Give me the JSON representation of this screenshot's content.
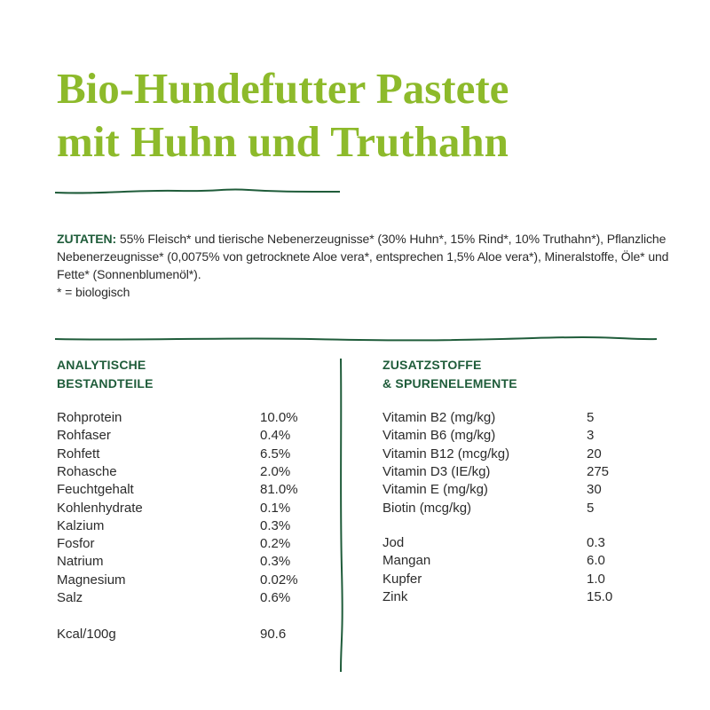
{
  "title": {
    "line1": "Bio-Hundefutter Pastete",
    "line2": "mit Huhn und Truthahn"
  },
  "ingredients": {
    "label": "ZUTATEN:",
    "text": " 55% Fleisch* und tierische Nebenerzeugnisse* (30% Huhn*, 15% Rind*, 10% Truthahn*), Pflanzliche Nebenerzeugnisse* (0,0075% von getrocknete Aloe vera*, entsprechen 1,5% Aloe vera*), Mineralstoffe, Öle* und Fette* (Sonnenblumenöl*).",
    "footnote": "* = biologisch"
  },
  "analytical": {
    "heading1": "ANALYTISCHE",
    "heading2": "BESTANDTEILE",
    "rows": [
      {
        "label": "Rohprotein",
        "value": "10.0%"
      },
      {
        "label": "Rohfaser",
        "value": "0.4%"
      },
      {
        "label": "Rohfett",
        "value": "6.5%"
      },
      {
        "label": "Rohasche",
        "value": "2.0%"
      },
      {
        "label": "Feuchtgehalt",
        "value": "81.0%"
      },
      {
        "label": "Kohlenhydrate",
        "value": "0.1%"
      },
      {
        "label": "Kalzium",
        "value": "0.3%"
      },
      {
        "label": "Fosfor",
        "value": "0.2%"
      },
      {
        "label": "Natrium",
        "value": "0.3%"
      },
      {
        "label": "Magnesium",
        "value": "0.02%"
      },
      {
        "label": "Salz",
        "value": "0.6%"
      }
    ],
    "energy": {
      "label": "Kcal/100g",
      "value": "90.6"
    }
  },
  "additives": {
    "heading1": "ZUSATZSTOFFE",
    "heading2": "& SPURENELEMENTE",
    "vitamins": [
      {
        "label": "Vitamin B2 (mg/kg)",
        "value": "5"
      },
      {
        "label": "Vitamin B6 (mg/kg)",
        "value": "3"
      },
      {
        "label": "Vitamin B12 (mcg/kg)",
        "value": "20"
      },
      {
        "label": "Vitamin D3 (IE/kg)",
        "value": "275"
      },
      {
        "label": "Vitamin E (mg/kg)",
        "value": "30"
      },
      {
        "label": "Biotin (mcg/kg)",
        "value": "5"
      }
    ],
    "trace": [
      {
        "label": "Jod",
        "value": "0.3"
      },
      {
        "label": "Mangan",
        "value": "6.0"
      },
      {
        "label": "Kupfer",
        "value": "1.0"
      },
      {
        "label": "Zink",
        "value": "15.0"
      }
    ]
  },
  "colors": {
    "title": "#8dba2b",
    "accent": "#1f5c3a",
    "text": "#2b2b2b"
  }
}
